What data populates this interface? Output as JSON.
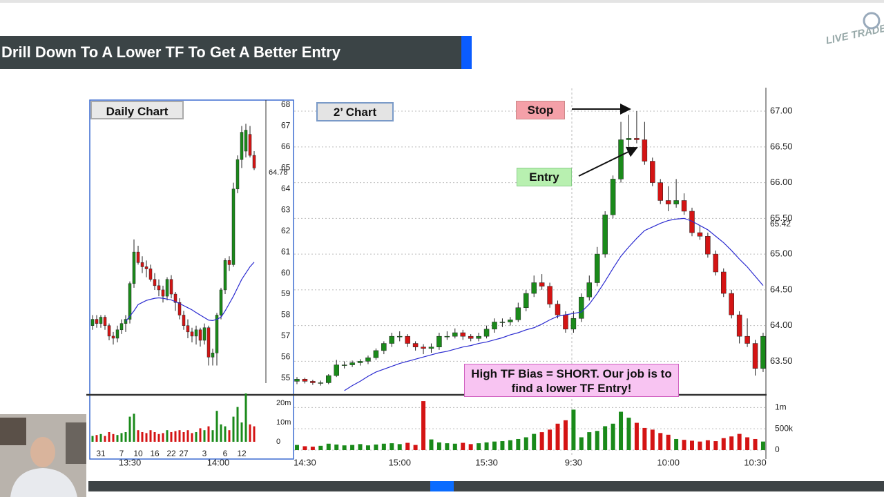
{
  "title": "Drill Down To A Lower TF To Get A Better Entry",
  "logo": "LIVE TRADE",
  "chart_data": [
    {
      "type": "candlestick",
      "label": "Daily Chart",
      "categories": [
        null,
        null,
        "31",
        null,
        null,
        null,
        null,
        "7",
        null,
        null,
        null,
        "10",
        null,
        null,
        null,
        "16",
        null,
        null,
        null,
        "22",
        null,
        null,
        "27",
        null,
        null,
        null,
        null,
        "3",
        null,
        null,
        null,
        null,
        "6",
        null,
        null,
        null,
        "12",
        null,
        null,
        null
      ],
      "time_labels": [
        "13:30",
        "14:00"
      ],
      "ohlc": [
        [
          57.5,
          58.0,
          57.3,
          57.8
        ],
        [
          57.8,
          58.0,
          57.4,
          57.6
        ],
        [
          57.6,
          58.0,
          57.4,
          57.9
        ],
        [
          57.9,
          58.0,
          57.3,
          57.5
        ],
        [
          57.5,
          57.6,
          56.8,
          57.0
        ],
        [
          57.0,
          57.2,
          56.6,
          56.9
        ],
        [
          56.9,
          57.5,
          56.7,
          57.3
        ],
        [
          57.3,
          57.8,
          57.1,
          57.6
        ],
        [
          57.6,
          58.0,
          57.2,
          57.8
        ],
        [
          57.8,
          59.6,
          57.6,
          59.5
        ],
        [
          59.5,
          61.6,
          59.3,
          61.0
        ],
        [
          61.0,
          61.3,
          60.4,
          60.5
        ],
        [
          60.5,
          60.8,
          60.0,
          60.3
        ],
        [
          60.3,
          60.6,
          59.8,
          60.2
        ],
        [
          60.2,
          60.4,
          59.6,
          59.7
        ],
        [
          59.7,
          60.0,
          59.2,
          59.4
        ],
        [
          59.4,
          59.7,
          58.9,
          59.2
        ],
        [
          59.2,
          59.4,
          58.6,
          58.9
        ],
        [
          58.9,
          59.8,
          58.7,
          59.7
        ],
        [
          59.7,
          59.9,
          58.8,
          59.0
        ],
        [
          59.0,
          59.1,
          58.2,
          58.6
        ],
        [
          58.6,
          58.8,
          57.8,
          58.0
        ],
        [
          58.0,
          58.2,
          57.3,
          57.5
        ],
        [
          57.5,
          57.8,
          56.9,
          57.2
        ],
        [
          57.2,
          57.4,
          56.7,
          57.0
        ],
        [
          57.0,
          57.5,
          56.6,
          57.3
        ],
        [
          57.3,
          57.4,
          56.5,
          56.8
        ],
        [
          56.8,
          57.6,
          56.6,
          57.4
        ],
        [
          57.4,
          57.5,
          55.6,
          56.0
        ],
        [
          56.0,
          56.4,
          55.6,
          56.2
        ],
        [
          56.2,
          58.1,
          55.6,
          58.0
        ],
        [
          58.0,
          59.3,
          57.8,
          59.2
        ],
        [
          59.2,
          60.7,
          59.0,
          60.6
        ],
        [
          60.6,
          60.8,
          60.1,
          60.4
        ],
        [
          60.4,
          64.3,
          60.3,
          64.0
        ],
        [
          64.0,
          65.6,
          63.8,
          65.4
        ],
        [
          65.4,
          67.0,
          65.0,
          66.7
        ],
        [
          65.8,
          67.1,
          65.5,
          66.8
        ],
        [
          66.6,
          67.0,
          65.5,
          65.6
        ],
        [
          65.6,
          65.8,
          64.9,
          65.0
        ]
      ],
      "volume": [
        3000000,
        3500000,
        4000000,
        3000000,
        5000000,
        4000000,
        3500000,
        4500000,
        5000000,
        13000000,
        14500000,
        6000000,
        5000000,
        4500000,
        6000000,
        5000000,
        4000000,
        4500000,
        6000000,
        5000000,
        5500000,
        6000000,
        5000000,
        6000000,
        4500000,
        5000000,
        7000000,
        6000000,
        8000000,
        6000000,
        16000000,
        9000000,
        8000000,
        6000000,
        13000000,
        18000000,
        10000000,
        25000000,
        9000000,
        8000000
      ],
      "ma": [
        null,
        null,
        null,
        null,
        null,
        null,
        null,
        null,
        57.7,
        57.95,
        58.2,
        58.5,
        58.6,
        58.7,
        58.75,
        58.8,
        58.82,
        58.8,
        58.76,
        58.72,
        58.64,
        58.55,
        58.45,
        58.35,
        58.25,
        58.12,
        58.0,
        57.88,
        57.76,
        57.74,
        57.8,
        57.9,
        58.2,
        58.55,
        58.9,
        59.3,
        59.7,
        60.0,
        60.3,
        60.52
      ],
      "up_color": "#1a8a1a",
      "down_color": "#d41414",
      "ma_color": "#2a2ad0",
      "ylim": [
        54.6,
        68.23
      ],
      "yticks": [
        55,
        56,
        57,
        58,
        59,
        60,
        61,
        62,
        63,
        64,
        65,
        66,
        67,
        68
      ],
      "last_price": 64.78,
      "vylim": [
        0,
        25000000
      ],
      "vyticks": [
        0,
        {
          "value": 10000000,
          "label": "10m"
        },
        {
          "value": 20000000,
          "label": "20m"
        }
      ],
      "grid": false
    },
    {
      "type": "candlestick",
      "label": "2’ Chart",
      "categories": [
        null,
        "14:30",
        null,
        null,
        null,
        null,
        null,
        null,
        null,
        null,
        null,
        null,
        null,
        "15:00",
        null,
        null,
        null,
        null,
        null,
        null,
        null,
        null,
        null,
        null,
        "15:30",
        null,
        null,
        null,
        null,
        null,
        null,
        null,
        null,
        null,
        null,
        "9:30",
        null,
        null,
        null,
        null,
        null,
        null,
        null,
        null,
        null,
        null,
        null,
        "10:00",
        null,
        null,
        null,
        null,
        null,
        null,
        null,
        null,
        null,
        null,
        "10:30",
        null
      ],
      "ohlc": [
        [
          63.22,
          63.28,
          63.18,
          63.25
        ],
        [
          63.25,
          63.27,
          63.19,
          63.22
        ],
        [
          63.22,
          63.24,
          63.17,
          63.2
        ],
        [
          63.2,
          63.23,
          63.16,
          63.2
        ],
        [
          63.2,
          63.32,
          63.18,
          63.3
        ],
        [
          63.3,
          63.52,
          63.28,
          63.45
        ],
        [
          63.45,
          63.5,
          63.4,
          63.45
        ],
        [
          63.45,
          63.51,
          63.42,
          63.48
        ],
        [
          63.48,
          63.53,
          63.44,
          63.5
        ],
        [
          63.5,
          63.58,
          63.46,
          63.55
        ],
        [
          63.55,
          63.68,
          63.52,
          63.65
        ],
        [
          63.65,
          63.78,
          63.6,
          63.75
        ],
        [
          63.75,
          63.9,
          63.7,
          63.85
        ],
        [
          63.85,
          63.92,
          63.78,
          63.85
        ],
        [
          63.85,
          63.88,
          63.7,
          63.75
        ],
        [
          63.75,
          63.78,
          63.65,
          63.7
        ],
        [
          63.7,
          63.74,
          63.6,
          63.68
        ],
        [
          63.68,
          63.75,
          63.62,
          63.7
        ],
        [
          63.7,
          63.9,
          63.66,
          63.85
        ],
        [
          63.85,
          63.92,
          63.8,
          63.85
        ],
        [
          63.85,
          63.96,
          63.82,
          63.9
        ],
        [
          63.9,
          63.94,
          63.8,
          63.85
        ],
        [
          63.85,
          63.88,
          63.78,
          63.82
        ],
        [
          63.82,
          63.9,
          63.78,
          63.85
        ],
        [
          63.85,
          64.0,
          63.82,
          63.95
        ],
        [
          63.95,
          64.1,
          63.9,
          64.05
        ],
        [
          64.05,
          64.1,
          63.98,
          64.05
        ],
        [
          64.05,
          64.12,
          64.0,
          64.08
        ],
        [
          64.08,
          64.32,
          64.05,
          64.25
        ],
        [
          64.25,
          64.5,
          64.2,
          64.45
        ],
        [
          64.45,
          64.7,
          64.4,
          64.6
        ],
        [
          64.6,
          64.72,
          64.5,
          64.55
        ],
        [
          64.55,
          64.6,
          64.25,
          64.3
        ],
        [
          64.3,
          64.35,
          64.1,
          64.15
        ],
        [
          64.15,
          64.2,
          63.9,
          63.95
        ],
        [
          63.95,
          64.2,
          63.9,
          64.1
        ],
        [
          64.1,
          64.45,
          64.05,
          64.4
        ],
        [
          64.4,
          64.7,
          64.35,
          64.6
        ],
        [
          64.6,
          65.1,
          64.55,
          65.0
        ],
        [
          65.0,
          65.6,
          64.95,
          65.55
        ],
        [
          65.55,
          66.1,
          65.5,
          66.05
        ],
        [
          66.05,
          66.85,
          66.0,
          66.6
        ],
        [
          66.6,
          66.95,
          66.5,
          66.62
        ],
        [
          66.62,
          67.0,
          66.55,
          66.6
        ],
        [
          66.6,
          66.85,
          66.25,
          66.3
        ],
        [
          66.3,
          66.35,
          65.95,
          66.0
        ],
        [
          66.0,
          66.05,
          65.7,
          65.75
        ],
        [
          65.75,
          65.95,
          65.6,
          65.7
        ],
        [
          65.7,
          66.05,
          65.65,
          65.75
        ],
        [
          65.75,
          65.85,
          65.55,
          65.6
        ],
        [
          65.6,
          65.65,
          65.25,
          65.3
        ],
        [
          65.3,
          65.4,
          65.2,
          65.25
        ],
        [
          65.25,
          65.3,
          64.95,
          65.0
        ],
        [
          65.0,
          65.05,
          64.7,
          64.75
        ],
        [
          64.75,
          64.8,
          64.4,
          64.45
        ],
        [
          64.45,
          64.5,
          64.1,
          64.15
        ],
        [
          64.15,
          64.2,
          63.75,
          63.85
        ],
        [
          63.85,
          64.1,
          63.7,
          63.75
        ],
        [
          63.75,
          63.8,
          63.3,
          63.4
        ],
        [
          63.4,
          63.9,
          63.35,
          63.85
        ]
      ],
      "volume": [
        120000,
        90000,
        80000,
        100000,
        150000,
        130000,
        110000,
        120000,
        140000,
        110000,
        130000,
        150000,
        160000,
        140000,
        170000,
        120000,
        1150000,
        250000,
        180000,
        160000,
        150000,
        170000,
        140000,
        160000,
        180000,
        200000,
        210000,
        230000,
        260000,
        300000,
        380000,
        420000,
        480000,
        620000,
        700000,
        950000,
        300000,
        420000,
        450000,
        560000,
        620000,
        900000,
        760000,
        640000,
        520000,
        480000,
        400000,
        360000,
        260000,
        240000,
        220000,
        200000,
        230000,
        210000,
        280000,
        320000,
        380000,
        300000,
        260000,
        200000
      ],
      "ma": [
        null,
        null,
        null,
        null,
        null,
        null,
        63.09,
        63.16,
        63.22,
        63.29,
        63.35,
        63.39,
        63.43,
        63.47,
        63.5,
        63.53,
        63.56,
        63.59,
        63.62,
        63.64,
        63.67,
        63.7,
        63.72,
        63.75,
        63.77,
        63.8,
        63.83,
        63.87,
        63.9,
        63.94,
        63.97,
        64.02,
        64.08,
        64.13,
        64.15,
        64.17,
        64.19,
        64.3,
        64.45,
        64.62,
        64.8,
        64.97,
        65.1,
        65.22,
        65.33,
        65.38,
        65.43,
        65.47,
        65.49,
        65.5,
        65.46,
        65.4,
        65.34,
        65.25,
        65.16,
        65.05,
        64.93,
        64.82,
        64.69,
        64.56
      ],
      "up_color": "#1a8a1a",
      "down_color": "#d41414",
      "ma_color": "#2a2ad0",
      "ylim": [
        63.05,
        67.3
      ],
      "yticks": [
        {
          "value": 63.5,
          "label": "63.50"
        },
        {
          "value": 64,
          "label": "64.00"
        },
        {
          "value": 64.5,
          "label": "64.50"
        },
        {
          "value": 65,
          "label": "65.00"
        },
        {
          "value": 65.5,
          "label": "65.50"
        },
        {
          "value": 66,
          "label": "66.00"
        },
        {
          "value": 66.5,
          "label": "66.50"
        },
        {
          "value": 67,
          "label": "67.00"
        }
      ],
      "last_price": 65.42,
      "vylim": [
        0,
        1200000
      ],
      "vyticks": [
        0,
        {
          "value": 500000,
          "label": "500k"
        },
        {
          "value": 1000000,
          "label": "1m"
        }
      ],
      "grid": true,
      "annotations": {
        "stop": "Stop",
        "entry": "Entry",
        "bias": "High TF Bias = SHORT. Our job is to find a lower TF Entry!"
      }
    }
  ]
}
